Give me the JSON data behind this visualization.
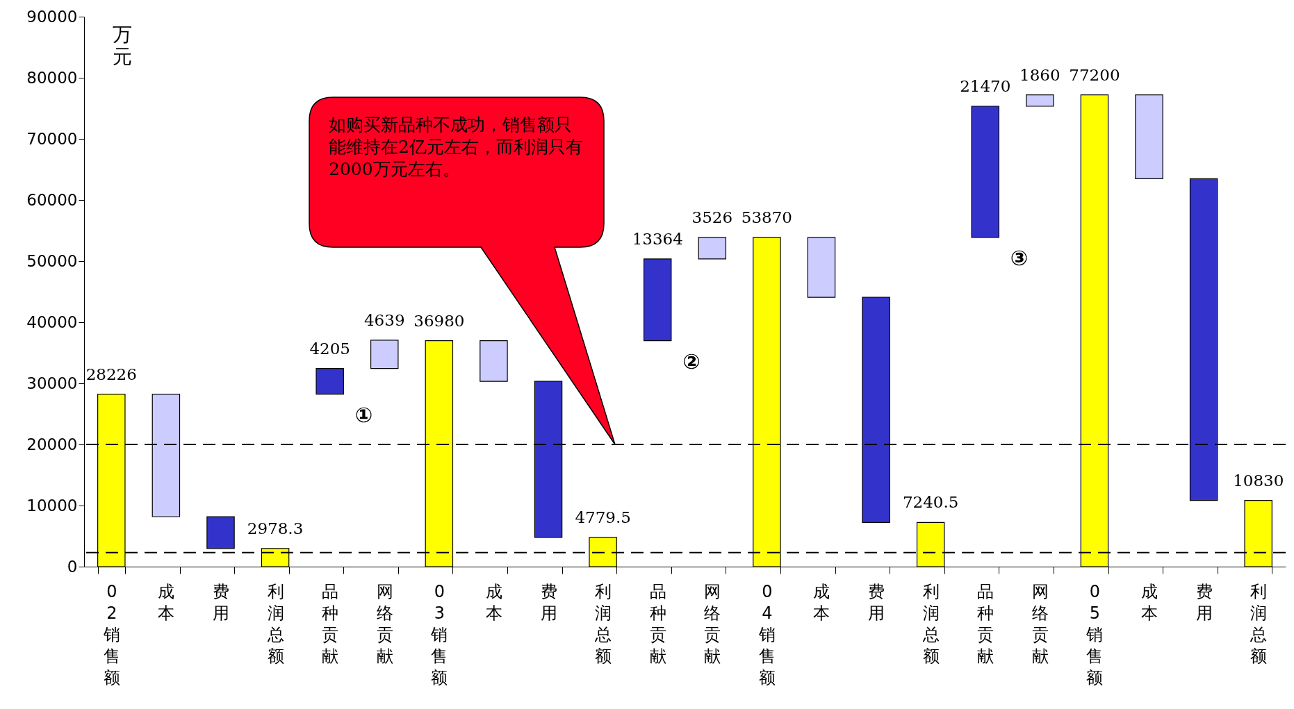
{
  "chart_data": {
    "type": "bar",
    "ylabel": "万元",
    "categories": [
      "02销售额",
      "成本",
      "费用",
      "利润总额",
      "品种贡献",
      "网络贡献",
      "03销售额",
      "成本",
      "费用",
      "利润总额",
      "品种贡献",
      "网络贡献",
      "04销售额",
      "成本",
      "费用",
      "利润总额",
      "品种贡献",
      "网络贡献",
      "05销售额",
      "成本",
      "费用",
      "利润总额"
    ],
    "base": [
      0,
      8180,
      2978.3,
      0,
      28226,
      32431,
      0,
      30320,
      4779.5,
      0,
      36980,
      50344,
      0,
      44070,
      7240.5,
      0,
      53870,
      75340,
      0,
      63470,
      10830,
      0
    ],
    "values": [
      28226,
      20046,
      5202,
      2978.3,
      4205,
      4639,
      36980,
      6660,
      25540.5,
      4779.5,
      13364,
      3526,
      53870,
      9800,
      36829.5,
      7240.5,
      21470,
      1860,
      77200,
      13730,
      52640,
      10830
    ],
    "colors": [
      "#ffff00",
      "#ccccff",
      "#3333cc",
      "#ffff00",
      "#3333cc",
      "#ccccff",
      "#ffff00",
      "#ccccff",
      "#3333cc",
      "#ffff00",
      "#3333cc",
      "#ccccff",
      "#ffff00",
      "#ccccff",
      "#3333cc",
      "#ffff00",
      "#3333cc",
      "#ccccff",
      "#ffff00",
      "#ccccff",
      "#3333cc",
      "#ffff00"
    ],
    "value_labels": [
      "28226",
      null,
      null,
      "2978.3",
      "4205",
      "4639",
      "36980",
      null,
      null,
      "4779.5",
      "13364",
      "3526",
      "53870",
      null,
      null,
      "7240.5",
      "21470",
      "1860",
      "77200",
      null,
      null,
      "10830"
    ],
    "ylim": [
      0,
      90000
    ],
    "yticks": [
      0,
      10000,
      20000,
      30000,
      40000,
      50000,
      60000,
      70000,
      80000,
      90000
    ],
    "grid": false,
    "ref_lines": [
      {
        "axis": "y",
        "value": 20000,
        "color": "#000000",
        "line_style": "dashed"
      },
      {
        "axis": "y",
        "value": 2300,
        "color": "#000000",
        "line_style": "dashed"
      }
    ],
    "annotations": [
      "如购买新品种不成功，销售额只能维持在2亿元左右，而利润只有2000万元左右。",
      "①",
      "②",
      "③"
    ]
  }
}
